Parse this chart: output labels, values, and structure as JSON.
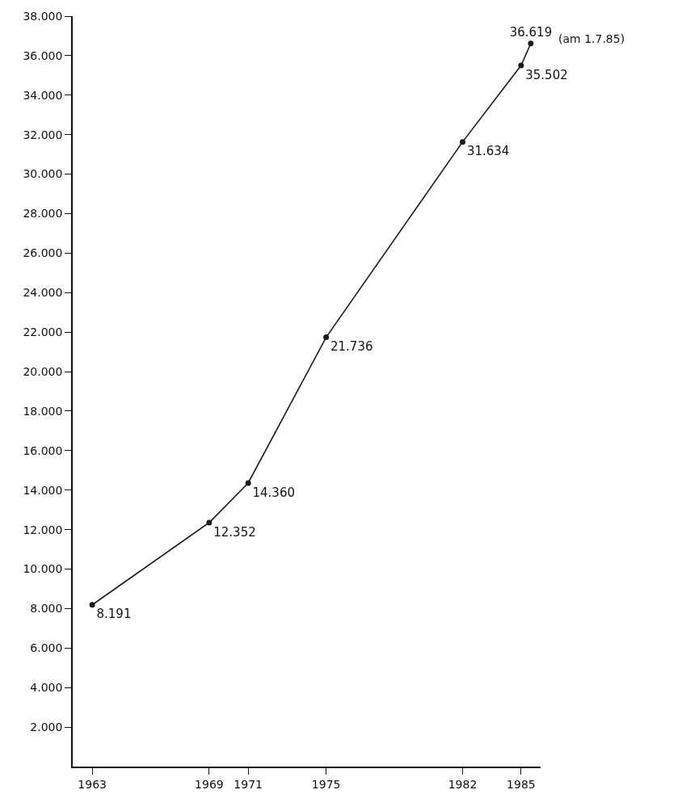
{
  "chart_data": {
    "type": "line",
    "x": [
      1963,
      1969,
      1971,
      1975,
      1982,
      1985,
      1985.5
    ],
    "values": [
      8191,
      12352,
      14360,
      21736,
      31634,
      35502,
      36619
    ],
    "value_labels": [
      "8.191",
      "12.352",
      "14.360",
      "21.736",
      "31.634",
      "35.502",
      "36.619"
    ],
    "color": "#1a1a1a",
    "marker": "circle",
    "line_style": "solid",
    "xlim": [
      1962,
      1986
    ],
    "xticks": [
      1963,
      1969,
      1971,
      1975,
      1982,
      1985
    ],
    "ylim": [
      0,
      38000
    ],
    "yticks": [
      {
        "value": 2000,
        "label": "2.000"
      },
      {
        "value": 4000,
        "label": "4.000"
      },
      {
        "value": 6000,
        "label": "6.000"
      },
      {
        "value": 8000,
        "label": "8.000"
      },
      {
        "value": 10000,
        "label": "10.000"
      },
      {
        "value": 12000,
        "label": "12.000"
      },
      {
        "value": 14000,
        "label": "14.000"
      },
      {
        "value": 16000,
        "label": "16.000"
      },
      {
        "value": 18000,
        "label": "18.000"
      },
      {
        "value": 20000,
        "label": "20.000"
      },
      {
        "value": 22000,
        "label": "22.000"
      },
      {
        "value": 24000,
        "label": "24.000"
      },
      {
        "value": 26000,
        "label": "26.000"
      },
      {
        "value": 28000,
        "label": "28.000"
      },
      {
        "value": 30000,
        "label": "30.000"
      },
      {
        "value": 32000,
        "label": "32.000"
      },
      {
        "value": 34000,
        "label": "34.000"
      },
      {
        "value": 36000,
        "label": "36.000"
      },
      {
        "value": 38000,
        "label": "38.000"
      }
    ],
    "annotations": [
      {
        "text": "(am 1.7.85)",
        "x": 1985.5,
        "y": 36619
      }
    ]
  }
}
